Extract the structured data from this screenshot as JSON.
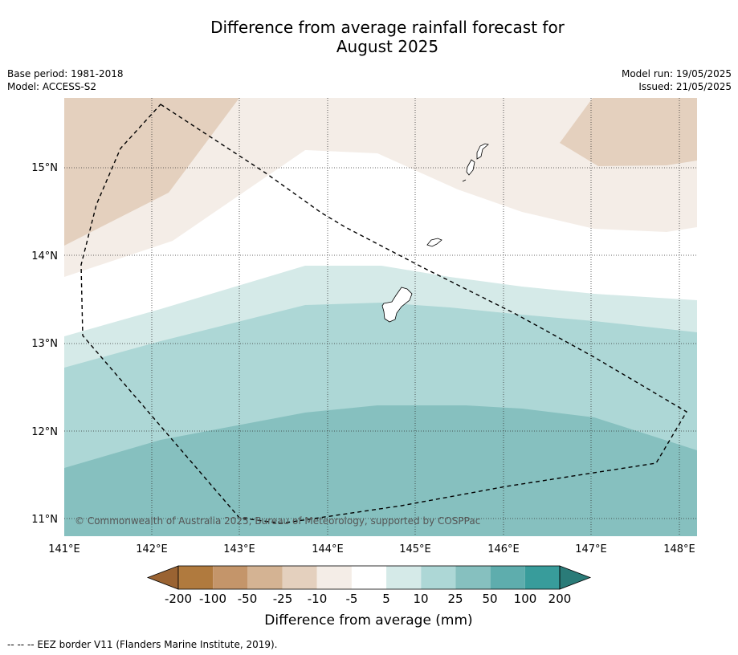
{
  "title_line1": "Difference from average rainfall forecast for",
  "title_line2": "August 2025",
  "meta_left": [
    "Base period: 1981-2018",
    "Model: ACCESS-S2"
  ],
  "meta_right": [
    "Model run: 19/05/2025",
    "Issued: 21/05/2025"
  ],
  "copyright": "© Commonwealth of Australia 2025, Bureau of Meteorology, supported by COSPPac",
  "lat_labels": [
    "15°N",
    "14°N",
    "13°N",
    "12°N",
    "11°N"
  ],
  "lon_labels": [
    "141°E",
    "142°E",
    "143°E",
    "144°E",
    "145°E",
    "146°E",
    "147°E",
    "148°E"
  ],
  "legend": {
    "title": "Difference from average (mm)",
    "tick_labels": [
      "-200",
      "-100",
      "-50",
      "-25",
      "-10",
      "-5",
      "5",
      "10",
      "25",
      "50",
      "100",
      "200"
    ],
    "colors": [
      "#9a6332",
      "#b07a3e",
      "#c4956a",
      "#d4b393",
      "#e4d0be",
      "#f4ede7",
      "#ffffff",
      "#d5eae8",
      "#add7d6",
      "#86c0bf",
      "#5eadad",
      "#389c9b",
      "#2a7b78"
    ]
  },
  "footnote": "--  --  -- EEZ border V11 (Flanders Marine Institute, 2019)."
}
